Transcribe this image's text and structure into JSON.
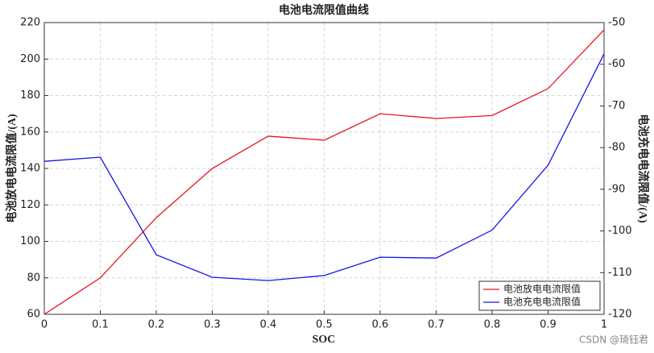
{
  "chart_data": {
    "type": "line",
    "title": "电池电流限值曲线",
    "xlabel": "SOC",
    "ylabel": "电池放电电流限值/(A)",
    "y2label": "电池充电电流限值/(A)",
    "x": [
      0,
      0.1,
      0.2,
      0.3,
      0.4,
      0.5,
      0.6,
      0.7,
      0.8,
      0.9,
      1
    ],
    "series": [
      {
        "name": "电池放电电流限值",
        "color": "#e8141c",
        "values": [
          60,
          80,
          113,
          140,
          157.7,
          155.5,
          170,
          167.4,
          169,
          183.8,
          216
        ]
      },
      {
        "name": "电池充电电流限值",
        "color": "#1414e8",
        "axis": "y2",
        "values": [
          -83.3,
          -82.3,
          -105.7,
          -111.1,
          -111.9,
          -110.7,
          -106.3,
          -106.5,
          -99.8,
          -84.2,
          -57.5
        ]
      }
    ],
    "xlim": [
      0,
      1
    ],
    "xticks": [
      0,
      0.1,
      0.2,
      0.3,
      0.4,
      0.5,
      0.6,
      0.7,
      0.8,
      0.9,
      1
    ],
    "ylim": [
      60,
      220
    ],
    "yticks": [
      60,
      80,
      100,
      120,
      140,
      160,
      180,
      200,
      220
    ],
    "y2lim": [
      -120,
      -50
    ],
    "y2ticks": [
      -120,
      -110,
      -100,
      -90,
      -80,
      -70,
      -60,
      -50
    ],
    "grid": true,
    "legend": "lower right",
    "watermark": "CSDN @琦钰君"
  }
}
